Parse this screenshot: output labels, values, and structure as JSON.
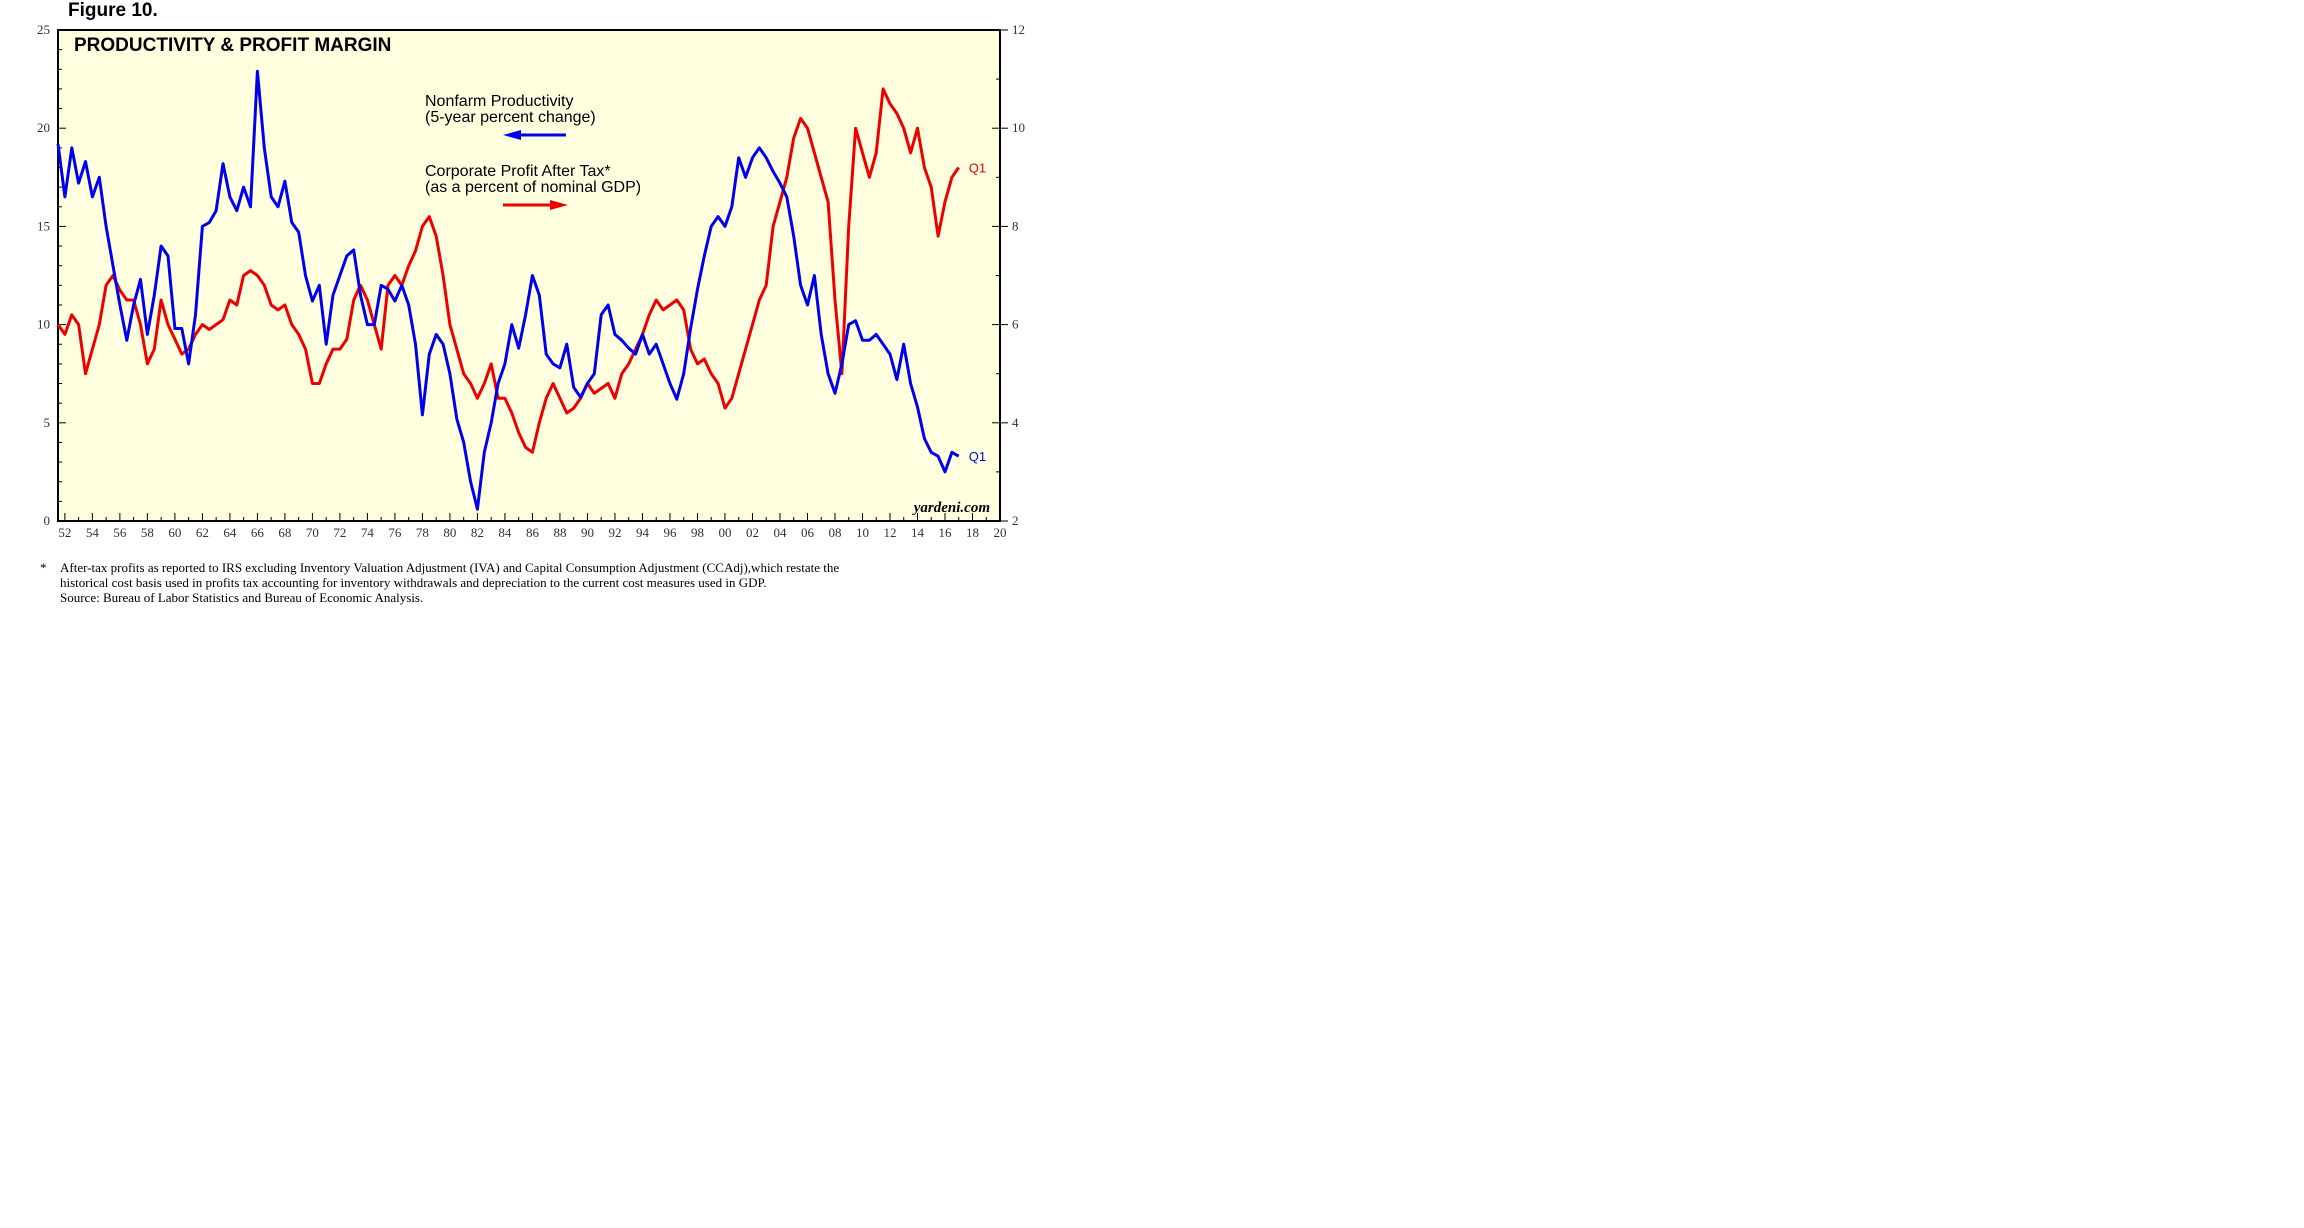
{
  "figure_label": "Figure 10.",
  "chart_data": {
    "type": "line",
    "title": "PRODUCTIVITY & PROFIT MARGIN",
    "x_tick_labels": [
      "52",
      "54",
      "56",
      "58",
      "60",
      "62",
      "64",
      "66",
      "68",
      "70",
      "72",
      "74",
      "76",
      "78",
      "80",
      "82",
      "84",
      "86",
      "88",
      "90",
      "92",
      "94",
      "96",
      "98",
      "00",
      "02",
      "04",
      "06",
      "08",
      "10",
      "12",
      "14",
      "16",
      "18",
      "20"
    ],
    "xlim": [
      1951.5,
      2020
    ],
    "left_axis": {
      "ylim": [
        0,
        25
      ],
      "ticks": [
        0,
        5,
        10,
        15,
        20,
        25
      ]
    },
    "right_axis": {
      "ylim": [
        2,
        12
      ],
      "ticks": [
        2,
        4,
        6,
        8,
        10,
        12
      ]
    },
    "grid": false,
    "series": [
      {
        "name": "Nonfarm Productivity",
        "subtitle": "(5-year percent change)",
        "axis": "left",
        "color": "#0000ee",
        "end_label": "Q1",
        "points": [
          [
            1951.5,
            19.2
          ],
          [
            1952,
            16.5
          ],
          [
            1952.5,
            19.0
          ],
          [
            1953,
            17.2
          ],
          [
            1953.5,
            18.3
          ],
          [
            1954,
            16.5
          ],
          [
            1954.5,
            17.5
          ],
          [
            1955,
            15.0
          ],
          [
            1955.5,
            13.0
          ],
          [
            1956,
            11.0
          ],
          [
            1956.5,
            9.2
          ],
          [
            1957,
            11.0
          ],
          [
            1957.5,
            12.3
          ],
          [
            1958,
            9.5
          ],
          [
            1958.5,
            11.5
          ],
          [
            1959,
            14.0
          ],
          [
            1959.5,
            13.5
          ],
          [
            1960,
            9.8
          ],
          [
            1960.5,
            9.8
          ],
          [
            1961,
            8.0
          ],
          [
            1961.5,
            10.5
          ],
          [
            1962,
            15.0
          ],
          [
            1962.5,
            15.2
          ],
          [
            1963,
            15.8
          ],
          [
            1963.5,
            18.2
          ],
          [
            1964,
            16.5
          ],
          [
            1964.5,
            15.8
          ],
          [
            1965,
            17.0
          ],
          [
            1965.5,
            16.0
          ],
          [
            1966,
            22.9
          ],
          [
            1966.5,
            19.0
          ],
          [
            1967,
            16.5
          ],
          [
            1967.5,
            16.0
          ],
          [
            1968,
            17.3
          ],
          [
            1968.5,
            15.2
          ],
          [
            1969,
            14.7
          ],
          [
            1969.5,
            12.5
          ],
          [
            1970,
            11.2
          ],
          [
            1970.5,
            12.0
          ],
          [
            1971,
            9.0
          ],
          [
            1971.5,
            11.5
          ],
          [
            1972,
            12.5
          ],
          [
            1972.5,
            13.5
          ],
          [
            1973,
            13.8
          ],
          [
            1973.5,
            11.5
          ],
          [
            1974,
            10.0
          ],
          [
            1974.5,
            10.0
          ],
          [
            1975,
            12.0
          ],
          [
            1975.5,
            11.8
          ],
          [
            1976,
            11.2
          ],
          [
            1976.5,
            12.0
          ],
          [
            1977,
            11.0
          ],
          [
            1977.5,
            9.0
          ],
          [
            1978,
            5.4
          ],
          [
            1978.5,
            8.5
          ],
          [
            1979,
            9.5
          ],
          [
            1979.5,
            9.0
          ],
          [
            1980,
            7.5
          ],
          [
            1980.5,
            5.2
          ],
          [
            1981,
            4.0
          ],
          [
            1981.5,
            2.0
          ],
          [
            1982,
            0.6
          ],
          [
            1982.5,
            3.5
          ],
          [
            1983,
            5.0
          ],
          [
            1983.5,
            7.0
          ],
          [
            1984,
            8.0
          ],
          [
            1984.5,
            10.0
          ],
          [
            1985,
            8.8
          ],
          [
            1985.5,
            10.5
          ],
          [
            1986,
            12.5
          ],
          [
            1986.5,
            11.5
          ],
          [
            1987,
            8.5
          ],
          [
            1987.5,
            8.0
          ],
          [
            1988,
            7.8
          ],
          [
            1988.5,
            9.0
          ],
          [
            1989,
            6.8
          ],
          [
            1989.5,
            6.3
          ],
          [
            1990,
            7.0
          ],
          [
            1990.5,
            7.5
          ],
          [
            1991,
            10.5
          ],
          [
            1991.5,
            11.0
          ],
          [
            1992,
            9.5
          ],
          [
            1992.5,
            9.2
          ],
          [
            1993,
            8.8
          ],
          [
            1993.5,
            8.5
          ],
          [
            1994,
            9.5
          ],
          [
            1994.5,
            8.5
          ],
          [
            1995,
            9.0
          ],
          [
            1995.5,
            8.0
          ],
          [
            1996,
            7.0
          ],
          [
            1996.5,
            6.2
          ],
          [
            1997,
            7.5
          ],
          [
            1997.5,
            9.8
          ],
          [
            1998,
            11.8
          ],
          [
            1998.5,
            13.5
          ],
          [
            1999,
            15.0
          ],
          [
            1999.5,
            15.5
          ],
          [
            2000,
            15.0
          ],
          [
            2000.5,
            16.0
          ],
          [
            2001,
            18.5
          ],
          [
            2001.5,
            17.5
          ],
          [
            2002,
            18.5
          ],
          [
            2002.5,
            19.0
          ],
          [
            2003,
            18.5
          ],
          [
            2003.5,
            17.8
          ],
          [
            2004,
            17.2
          ],
          [
            2004.5,
            16.5
          ],
          [
            2005,
            14.5
          ],
          [
            2005.5,
            12.0
          ],
          [
            2006,
            11.0
          ],
          [
            2006.5,
            12.5
          ],
          [
            2007,
            9.5
          ],
          [
            2007.5,
            7.5
          ],
          [
            2008,
            6.5
          ],
          [
            2008.5,
            8.0
          ],
          [
            2009,
            10.0
          ],
          [
            2009.5,
            10.2
          ],
          [
            2010,
            9.2
          ],
          [
            2010.5,
            9.2
          ],
          [
            2011,
            9.5
          ],
          [
            2011.5,
            9.0
          ],
          [
            2012,
            8.5
          ],
          [
            2012.5,
            7.2
          ],
          [
            2013,
            9.0
          ],
          [
            2013.5,
            7.0
          ],
          [
            2014,
            5.8
          ],
          [
            2014.5,
            4.2
          ],
          [
            2015,
            3.5
          ],
          [
            2015.5,
            3.3
          ],
          [
            2016,
            2.5
          ],
          [
            2016.5,
            3.5
          ],
          [
            2017,
            3.3
          ]
        ]
      },
      {
        "name": "Corporate Profit After Tax*",
        "subtitle": "(as a percent of nominal GDP)",
        "axis": "right",
        "color": "#ee0000",
        "end_label": "Q1",
        "points": [
          [
            1951.5,
            6.0
          ],
          [
            1952,
            5.8
          ],
          [
            1952.5,
            6.2
          ],
          [
            1953,
            6.0
          ],
          [
            1953.5,
            5.0
          ],
          [
            1954,
            5.5
          ],
          [
            1954.5,
            6.0
          ],
          [
            1955,
            6.8
          ],
          [
            1955.5,
            7.0
          ],
          [
            1956,
            6.7
          ],
          [
            1956.5,
            6.5
          ],
          [
            1957,
            6.5
          ],
          [
            1957.5,
            6.0
          ],
          [
            1958,
            5.2
          ],
          [
            1958.5,
            5.5
          ],
          [
            1959,
            6.5
          ],
          [
            1959.5,
            6.0
          ],
          [
            1960,
            5.7
          ],
          [
            1960.5,
            5.4
          ],
          [
            1961,
            5.5
          ],
          [
            1961.5,
            5.8
          ],
          [
            1962,
            6.0
          ],
          [
            1962.5,
            5.9
          ],
          [
            1963,
            6.0
          ],
          [
            1963.5,
            6.1
          ],
          [
            1964,
            6.5
          ],
          [
            1964.5,
            6.4
          ],
          [
            1965,
            7.0
          ],
          [
            1965.5,
            7.1
          ],
          [
            1966,
            7.0
          ],
          [
            1966.5,
            6.8
          ],
          [
            1967,
            6.4
          ],
          [
            1967.5,
            6.3
          ],
          [
            1968,
            6.4
          ],
          [
            1968.5,
            6.0
          ],
          [
            1969,
            5.8
          ],
          [
            1969.5,
            5.5
          ],
          [
            1970,
            4.8
          ],
          [
            1970.5,
            4.8
          ],
          [
            1971,
            5.2
          ],
          [
            1971.5,
            5.5
          ],
          [
            1972,
            5.5
          ],
          [
            1972.5,
            5.7
          ],
          [
            1973,
            6.5
          ],
          [
            1973.5,
            6.8
          ],
          [
            1974,
            6.5
          ],
          [
            1974.5,
            6.0
          ],
          [
            1975,
            5.5
          ],
          [
            1975.5,
            6.8
          ],
          [
            1976,
            7.0
          ],
          [
            1976.5,
            6.8
          ],
          [
            1977,
            7.2
          ],
          [
            1977.5,
            7.5
          ],
          [
            1978,
            8.0
          ],
          [
            1978.5,
            8.2
          ],
          [
            1979,
            7.8
          ],
          [
            1979.5,
            7.0
          ],
          [
            1980,
            6.0
          ],
          [
            1980.5,
            5.5
          ],
          [
            1981,
            5.0
          ],
          [
            1981.5,
            4.8
          ],
          [
            1982,
            4.5
          ],
          [
            1982.5,
            4.8
          ],
          [
            1983,
            5.2
          ],
          [
            1983.5,
            4.5
          ],
          [
            1984,
            4.5
          ],
          [
            1984.5,
            4.2
          ],
          [
            1985,
            3.8
          ],
          [
            1985.5,
            3.5
          ],
          [
            1986,
            3.4
          ],
          [
            1986.5,
            4.0
          ],
          [
            1987,
            4.5
          ],
          [
            1987.5,
            4.8
          ],
          [
            1988,
            4.5
          ],
          [
            1988.5,
            4.2
          ],
          [
            1989,
            4.3
          ],
          [
            1989.5,
            4.5
          ],
          [
            1990,
            4.8
          ],
          [
            1990.5,
            4.6
          ],
          [
            1991,
            4.7
          ],
          [
            1991.5,
            4.8
          ],
          [
            1992,
            4.5
          ],
          [
            1992.5,
            5.0
          ],
          [
            1993,
            5.2
          ],
          [
            1993.5,
            5.5
          ],
          [
            1994,
            5.8
          ],
          [
            1994.5,
            6.2
          ],
          [
            1995,
            6.5
          ],
          [
            1995.5,
            6.3
          ],
          [
            1996,
            6.4
          ],
          [
            1996.5,
            6.5
          ],
          [
            1997,
            6.3
          ],
          [
            1997.5,
            5.5
          ],
          [
            1998,
            5.2
          ],
          [
            1998.5,
            5.3
          ],
          [
            1999,
            5.0
          ],
          [
            1999.5,
            4.8
          ],
          [
            2000,
            4.3
          ],
          [
            2000.5,
            4.5
          ],
          [
            2001,
            5.0
          ],
          [
            2001.5,
            5.5
          ],
          [
            2002,
            6.0
          ],
          [
            2002.5,
            6.5
          ],
          [
            2003,
            6.8
          ],
          [
            2003.5,
            8.0
          ],
          [
            2004,
            8.5
          ],
          [
            2004.5,
            9.0
          ],
          [
            2005,
            9.8
          ],
          [
            2005.5,
            10.2
          ],
          [
            2006,
            10.0
          ],
          [
            2006.5,
            9.5
          ],
          [
            2007,
            9.0
          ],
          [
            2007.5,
            8.5
          ],
          [
            2008,
            6.5
          ],
          [
            2008.5,
            5.0
          ],
          [
            2009,
            8.0
          ],
          [
            2009.5,
            10.0
          ],
          [
            2010,
            9.5
          ],
          [
            2010.5,
            9.0
          ],
          [
            2011,
            9.5
          ],
          [
            2011.5,
            10.8
          ],
          [
            2012,
            10.5
          ],
          [
            2012.5,
            10.3
          ],
          [
            2013,
            10.0
          ],
          [
            2013.5,
            9.5
          ],
          [
            2014,
            10.0
          ],
          [
            2014.5,
            9.2
          ],
          [
            2015,
            8.8
          ],
          [
            2015.5,
            7.8
          ],
          [
            2016,
            8.5
          ],
          [
            2016.5,
            9.0
          ],
          [
            2017,
            9.2
          ]
        ]
      }
    ],
    "watermark": "yardeni.com"
  },
  "footnote": {
    "marker": "*",
    "line1": "After-tax profits as reported to IRS excluding Inventory Valuation Adjustment (IVA) and Capital Consumption Adjustment (CCAdj),which restate the",
    "line2": "historical cost basis used in profits tax accounting for inventory withdrawals and depreciation to the current cost measures used in GDP.",
    "line3": "Source: Bureau of Labor Statistics and Bureau of Economic Analysis."
  },
  "colors": {
    "plot_background": "#ffffe0",
    "productivity": "#0000ee",
    "profit": "#ee0000"
  }
}
